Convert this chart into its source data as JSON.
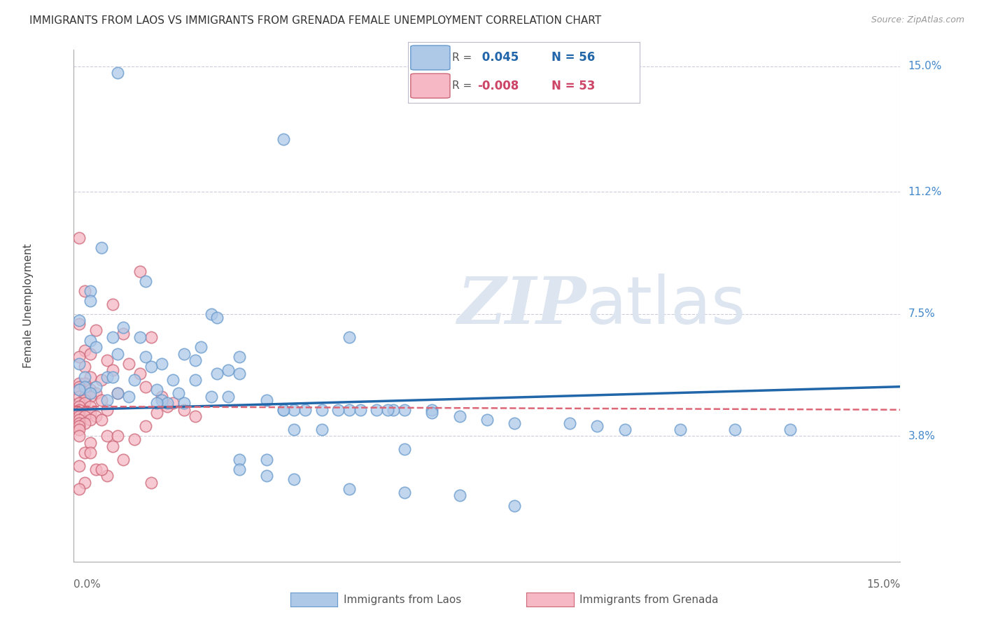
{
  "title": "IMMIGRANTS FROM LAOS VS IMMIGRANTS FROM GRENADA FEMALE UNEMPLOYMENT CORRELATION CHART",
  "source": "Source: ZipAtlas.com",
  "ylabel": "Female Unemployment",
  "ytick_labels": [
    "15.0%",
    "11.2%",
    "7.5%",
    "3.8%"
  ],
  "ytick_values": [
    0.15,
    0.112,
    0.075,
    0.038
  ],
  "xmin": 0.0,
  "xmax": 0.15,
  "ymin": 0.0,
  "ymax": 0.155,
  "laos_color": "#aec9e8",
  "laos_edge_color": "#6699cc",
  "grenada_color": "#f5b8c4",
  "grenada_edge_color": "#cc6677",
  "laos_line_color": "#2266aa",
  "grenada_line_color": "#dd6677",
  "background_color": "#ffffff",
  "grid_color": "#ccccdd",
  "watermark_color": "#dde5f0",
  "scatter_laos_x": [
    0.008,
    0.038,
    0.005,
    0.013,
    0.003,
    0.003,
    0.025,
    0.026,
    0.001,
    0.009,
    0.007,
    0.012,
    0.003,
    0.004,
    0.023,
    0.008,
    0.02,
    0.013,
    0.03,
    0.022,
    0.001,
    0.016,
    0.014,
    0.028,
    0.03,
    0.026,
    0.002,
    0.006,
    0.007,
    0.011,
    0.018,
    0.022,
    0.002,
    0.004,
    0.015,
    0.001,
    0.003,
    0.008,
    0.019,
    0.025,
    0.028,
    0.01,
    0.006,
    0.016,
    0.035,
    0.017,
    0.02,
    0.015,
    0.038,
    0.04,
    0.045,
    0.05,
    0.055,
    0.06,
    0.065,
    0.038,
    0.042,
    0.048,
    0.052,
    0.058,
    0.065,
    0.07,
    0.075,
    0.08,
    0.09,
    0.095,
    0.1,
    0.11,
    0.12,
    0.13,
    0.05,
    0.057,
    0.04,
    0.045,
    0.06,
    0.03,
    0.035,
    0.03,
    0.035,
    0.04,
    0.05,
    0.06,
    0.07,
    0.08
  ],
  "scatter_laos_y": [
    0.148,
    0.128,
    0.095,
    0.085,
    0.082,
    0.079,
    0.075,
    0.074,
    0.073,
    0.071,
    0.068,
    0.068,
    0.067,
    0.065,
    0.065,
    0.063,
    0.063,
    0.062,
    0.062,
    0.061,
    0.06,
    0.06,
    0.059,
    0.058,
    0.057,
    0.057,
    0.056,
    0.056,
    0.056,
    0.055,
    0.055,
    0.055,
    0.053,
    0.053,
    0.052,
    0.052,
    0.051,
    0.051,
    0.051,
    0.05,
    0.05,
    0.05,
    0.049,
    0.049,
    0.049,
    0.048,
    0.048,
    0.048,
    0.046,
    0.046,
    0.046,
    0.046,
    0.046,
    0.046,
    0.046,
    0.046,
    0.046,
    0.046,
    0.046,
    0.046,
    0.045,
    0.044,
    0.043,
    0.042,
    0.042,
    0.041,
    0.04,
    0.04,
    0.04,
    0.04,
    0.068,
    0.046,
    0.04,
    0.04,
    0.034,
    0.031,
    0.031,
    0.028,
    0.026,
    0.025,
    0.022,
    0.021,
    0.02,
    0.017
  ],
  "scatter_grenada_x": [
    0.001,
    0.012,
    0.002,
    0.007,
    0.001,
    0.004,
    0.009,
    0.014,
    0.002,
    0.003,
    0.001,
    0.006,
    0.01,
    0.002,
    0.007,
    0.012,
    0.003,
    0.005,
    0.001,
    0.002,
    0.001,
    0.003,
    0.001,
    0.004,
    0.008,
    0.001,
    0.002,
    0.003,
    0.002,
    0.005,
    0.001,
    0.002,
    0.001,
    0.003,
    0.001,
    0.006,
    0.001,
    0.002,
    0.003,
    0.004,
    0.001,
    0.002,
    0.001,
    0.003,
    0.005,
    0.001,
    0.002,
    0.001,
    0.013,
    0.001,
    0.006,
    0.008,
    0.011,
    0.003,
    0.007,
    0.002,
    0.009,
    0.001,
    0.004,
    0.006,
    0.002,
    0.014,
    0.001,
    0.017,
    0.02,
    0.022,
    0.016,
    0.018,
    0.013,
    0.015,
    0.001,
    0.003,
    0.005
  ],
  "scatter_grenada_y": [
    0.098,
    0.088,
    0.082,
    0.078,
    0.072,
    0.07,
    0.069,
    0.068,
    0.064,
    0.063,
    0.062,
    0.061,
    0.06,
    0.059,
    0.058,
    0.057,
    0.056,
    0.055,
    0.054,
    0.054,
    0.053,
    0.052,
    0.052,
    0.051,
    0.051,
    0.05,
    0.05,
    0.05,
    0.049,
    0.049,
    0.048,
    0.048,
    0.047,
    0.047,
    0.046,
    0.046,
    0.045,
    0.045,
    0.045,
    0.044,
    0.044,
    0.044,
    0.043,
    0.043,
    0.043,
    0.042,
    0.042,
    0.041,
    0.041,
    0.04,
    0.038,
    0.038,
    0.037,
    0.036,
    0.035,
    0.033,
    0.031,
    0.029,
    0.028,
    0.026,
    0.024,
    0.024,
    0.022,
    0.047,
    0.046,
    0.044,
    0.05,
    0.048,
    0.053,
    0.045,
    0.038,
    0.033,
    0.028
  ],
  "laos_trend_x": [
    0.0,
    0.15
  ],
  "laos_trend_y": [
    0.046,
    0.053
  ],
  "grenada_trend_x": [
    0.0,
    0.15
  ],
  "grenada_trend_y": [
    0.047,
    0.046
  ],
  "title_fontsize": 11,
  "source_fontsize": 9,
  "tick_fontsize": 11
}
